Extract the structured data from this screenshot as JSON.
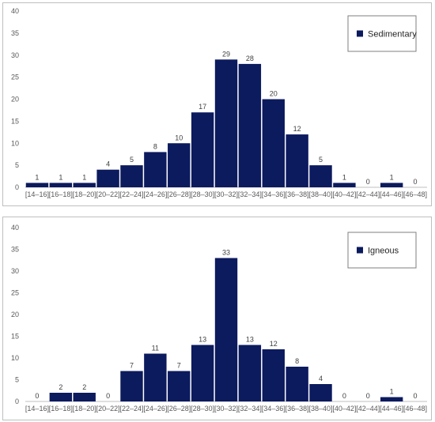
{
  "chart_data": [
    {
      "type": "bar",
      "title": "",
      "xlabel": "",
      "ylabel": "",
      "ylim": [
        0,
        40
      ],
      "y_ticks": [
        0,
        5,
        10,
        15,
        20,
        25,
        30,
        35,
        40
      ],
      "grid": false,
      "legend_position": "top-right",
      "categories": [
        "[14–16]",
        "[16–18]",
        "[18–20]",
        "[20–22]",
        "[22–24]",
        "[24–26]",
        "[26–28]",
        "[28–30]",
        "[30–32]",
        "[32–34]",
        "[34–36]",
        "[36–38]",
        "[38–40]",
        "[40–42]",
        "[42–44]",
        "[44–46]",
        "[46–48]"
      ],
      "series": [
        {
          "name": "Sedimentary",
          "color": "#0c1a5e",
          "values": [
            1,
            1,
            1,
            4,
            5,
            8,
            10,
            17,
            29,
            28,
            20,
            12,
            5,
            1,
            0,
            1,
            0
          ]
        }
      ]
    },
    {
      "type": "bar",
      "title": "",
      "xlabel": "",
      "ylabel": "",
      "ylim": [
        0,
        40
      ],
      "y_ticks": [
        0,
        5,
        10,
        15,
        20,
        25,
        30,
        35,
        40
      ],
      "grid": false,
      "legend_position": "top-right",
      "categories": [
        "[14–16]",
        "[16–18]",
        "[18–20]",
        "[20–22]",
        "[22–24]",
        "[24–26]",
        "[26–28]",
        "[28–30]",
        "[30–32]",
        "[32–34]",
        "[34–36]",
        "[36–38]",
        "[38–40]",
        "[40–42]",
        "[42–44]",
        "[44–46]",
        "[46–48]"
      ],
      "series": [
        {
          "name": "Igneous",
          "color": "#0c1a5e",
          "values": [
            0,
            2,
            2,
            0,
            7,
            11,
            7,
            13,
            33,
            13,
            12,
            8,
            4,
            0,
            0,
            1,
            0
          ]
        }
      ]
    }
  ]
}
